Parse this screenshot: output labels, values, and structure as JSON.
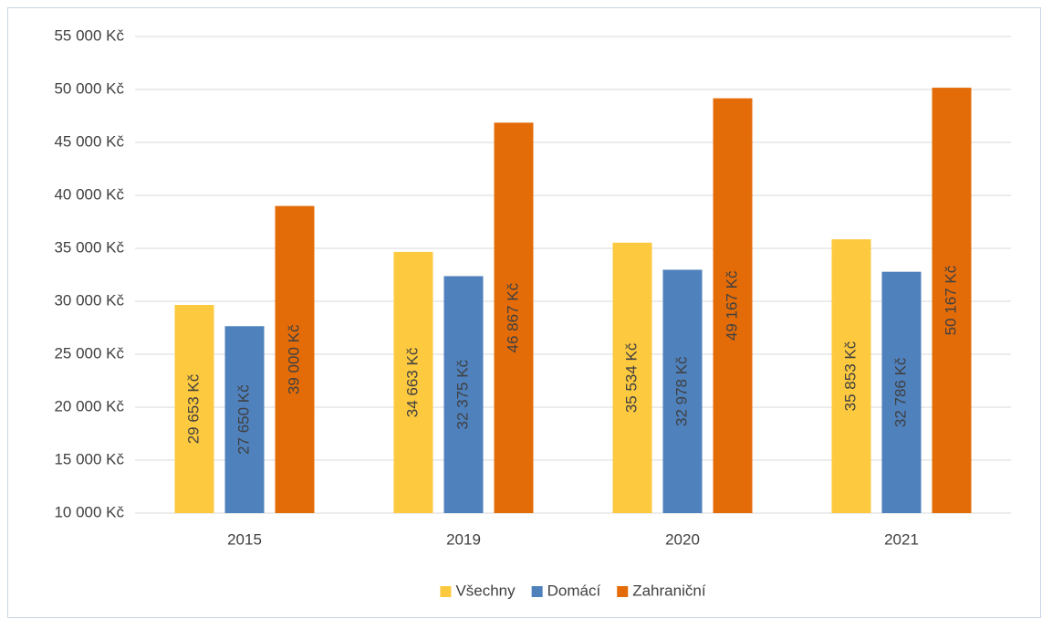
{
  "chart_data": {
    "type": "bar",
    "categories": [
      "2015",
      "2019",
      "2020",
      "2021"
    ],
    "series": [
      {
        "name": "Všechny",
        "color": "#fdc93f",
        "values": [
          29653,
          34663,
          35534,
          35853
        ],
        "value_labels": [
          "29 653 Kč",
          "34 663 Kč",
          "35 534 Kč",
          "35 853 Kč"
        ]
      },
      {
        "name": "Domácí",
        "color": "#4f81bd",
        "values": [
          27650,
          32375,
          32978,
          32786
        ],
        "value_labels": [
          "27 650 Kč",
          "32 375 Kč",
          "32 978 Kč",
          "32 786 Kč"
        ]
      },
      {
        "name": "Zahraniční",
        "color": "#e36c09",
        "values": [
          39000,
          46867,
          49167,
          50167
        ],
        "value_labels": [
          "39 000 Kč",
          "46 867 Kč",
          "49 167 Kč",
          "50 167 Kč"
        ]
      }
    ],
    "ylim": [
      10000,
      55000
    ],
    "yticks": [
      {
        "value": 10000,
        "label": "10 000 Kč"
      },
      {
        "value": 15000,
        "label": "15 000 Kč"
      },
      {
        "value": 20000,
        "label": "20 000 Kč"
      },
      {
        "value": 25000,
        "label": "25 000 Kč"
      },
      {
        "value": 30000,
        "label": "30 000 Kč"
      },
      {
        "value": 35000,
        "label": "35 000 Kč"
      },
      {
        "value": 40000,
        "label": "40 000 Kč"
      },
      {
        "value": 45000,
        "label": "45 000 Kč"
      },
      {
        "value": 50000,
        "label": "50 000 Kč"
      },
      {
        "value": 55000,
        "label": "55 000 Kč"
      }
    ],
    "grid": true,
    "legend": "bottom"
  }
}
